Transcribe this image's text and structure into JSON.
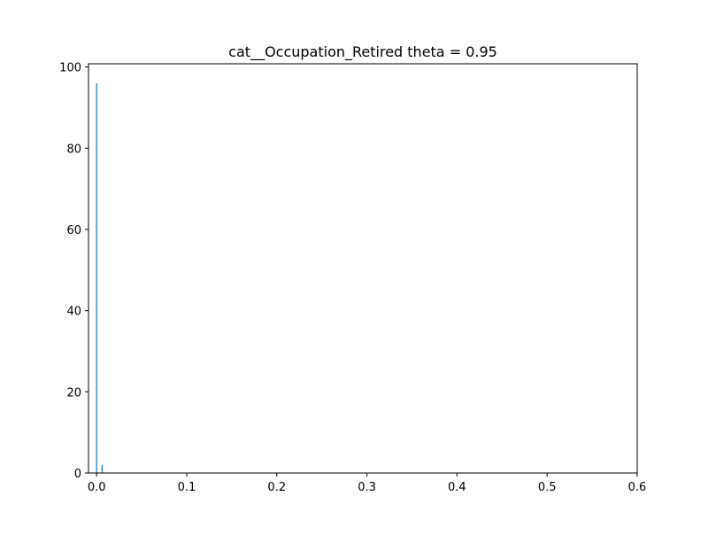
{
  "chart_data": {
    "type": "bar",
    "title": "cat__Occupation_Retired theta = 0.95",
    "xlabel": "",
    "ylabel": "",
    "xlim": [
      -0.009,
      0.6
    ],
    "ylim": [
      0,
      100.8
    ],
    "x_ticks": [
      0.0,
      0.1,
      0.2,
      0.3,
      0.4,
      0.5,
      0.6
    ],
    "x_tick_labels": [
      "0.0",
      "0.1",
      "0.2",
      "0.3",
      "0.4",
      "0.5",
      "0.6"
    ],
    "y_ticks": [
      0,
      20,
      40,
      60,
      80,
      100
    ],
    "y_tick_labels": [
      "0",
      "20",
      "40",
      "60",
      "80",
      "100"
    ],
    "grid": false,
    "bar_color": "#1f77b4",
    "bars": [
      {
        "x": 0.0,
        "width": 0.0012,
        "value": 96
      },
      {
        "x": 0.0061,
        "width": 0.0012,
        "value": 2
      }
    ]
  }
}
